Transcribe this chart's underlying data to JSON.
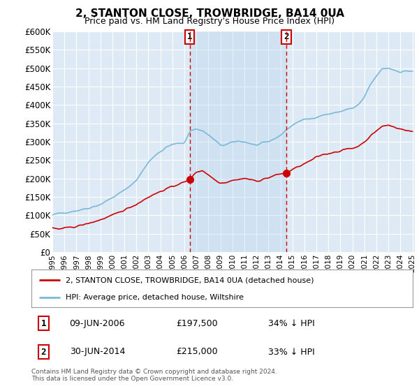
{
  "title": "2, STANTON CLOSE, TROWBRIDGE, BA14 0UA",
  "subtitle": "Price paid vs. HM Land Registry's House Price Index (HPI)",
  "ylabel_ticks": [
    "£0",
    "£50K",
    "£100K",
    "£150K",
    "£200K",
    "£250K",
    "£300K",
    "£350K",
    "£400K",
    "£450K",
    "£500K",
    "£550K",
    "£600K"
  ],
  "ytick_values": [
    0,
    50000,
    100000,
    150000,
    200000,
    250000,
    300000,
    350000,
    400000,
    450000,
    500000,
    550000,
    600000
  ],
  "ylim": [
    0,
    600000
  ],
  "xlim_start": 1995.0,
  "xlim_end": 2025.2,
  "vline1_x": 2006.44,
  "vline2_x": 2014.5,
  "sale1_date": "09-JUN-2006",
  "sale1_price": "£197,500",
  "sale1_pct": "34% ↓ HPI",
  "sale1_price_val": 197500,
  "sale1_year": 2006.44,
  "sale2_date": "30-JUN-2014",
  "sale2_price": "£215,000",
  "sale2_pct": "33% ↓ HPI",
  "sale2_price_val": 215000,
  "sale2_year": 2014.5,
  "legend_line1": "2, STANTON CLOSE, TROWBRIDGE, BA14 0UA (detached house)",
  "legend_line2": "HPI: Average price, detached house, Wiltshire",
  "footer": "Contains HM Land Registry data © Crown copyright and database right 2024.\nThis data is licensed under the Open Government Licence v3.0.",
  "hpi_color": "#7ab8d9",
  "sale_color": "#cc0000",
  "bg_color": "#ddeaf5",
  "shade_color": "#c5ddf0",
  "white": "#ffffff",
  "grid_color": "#ffffff"
}
